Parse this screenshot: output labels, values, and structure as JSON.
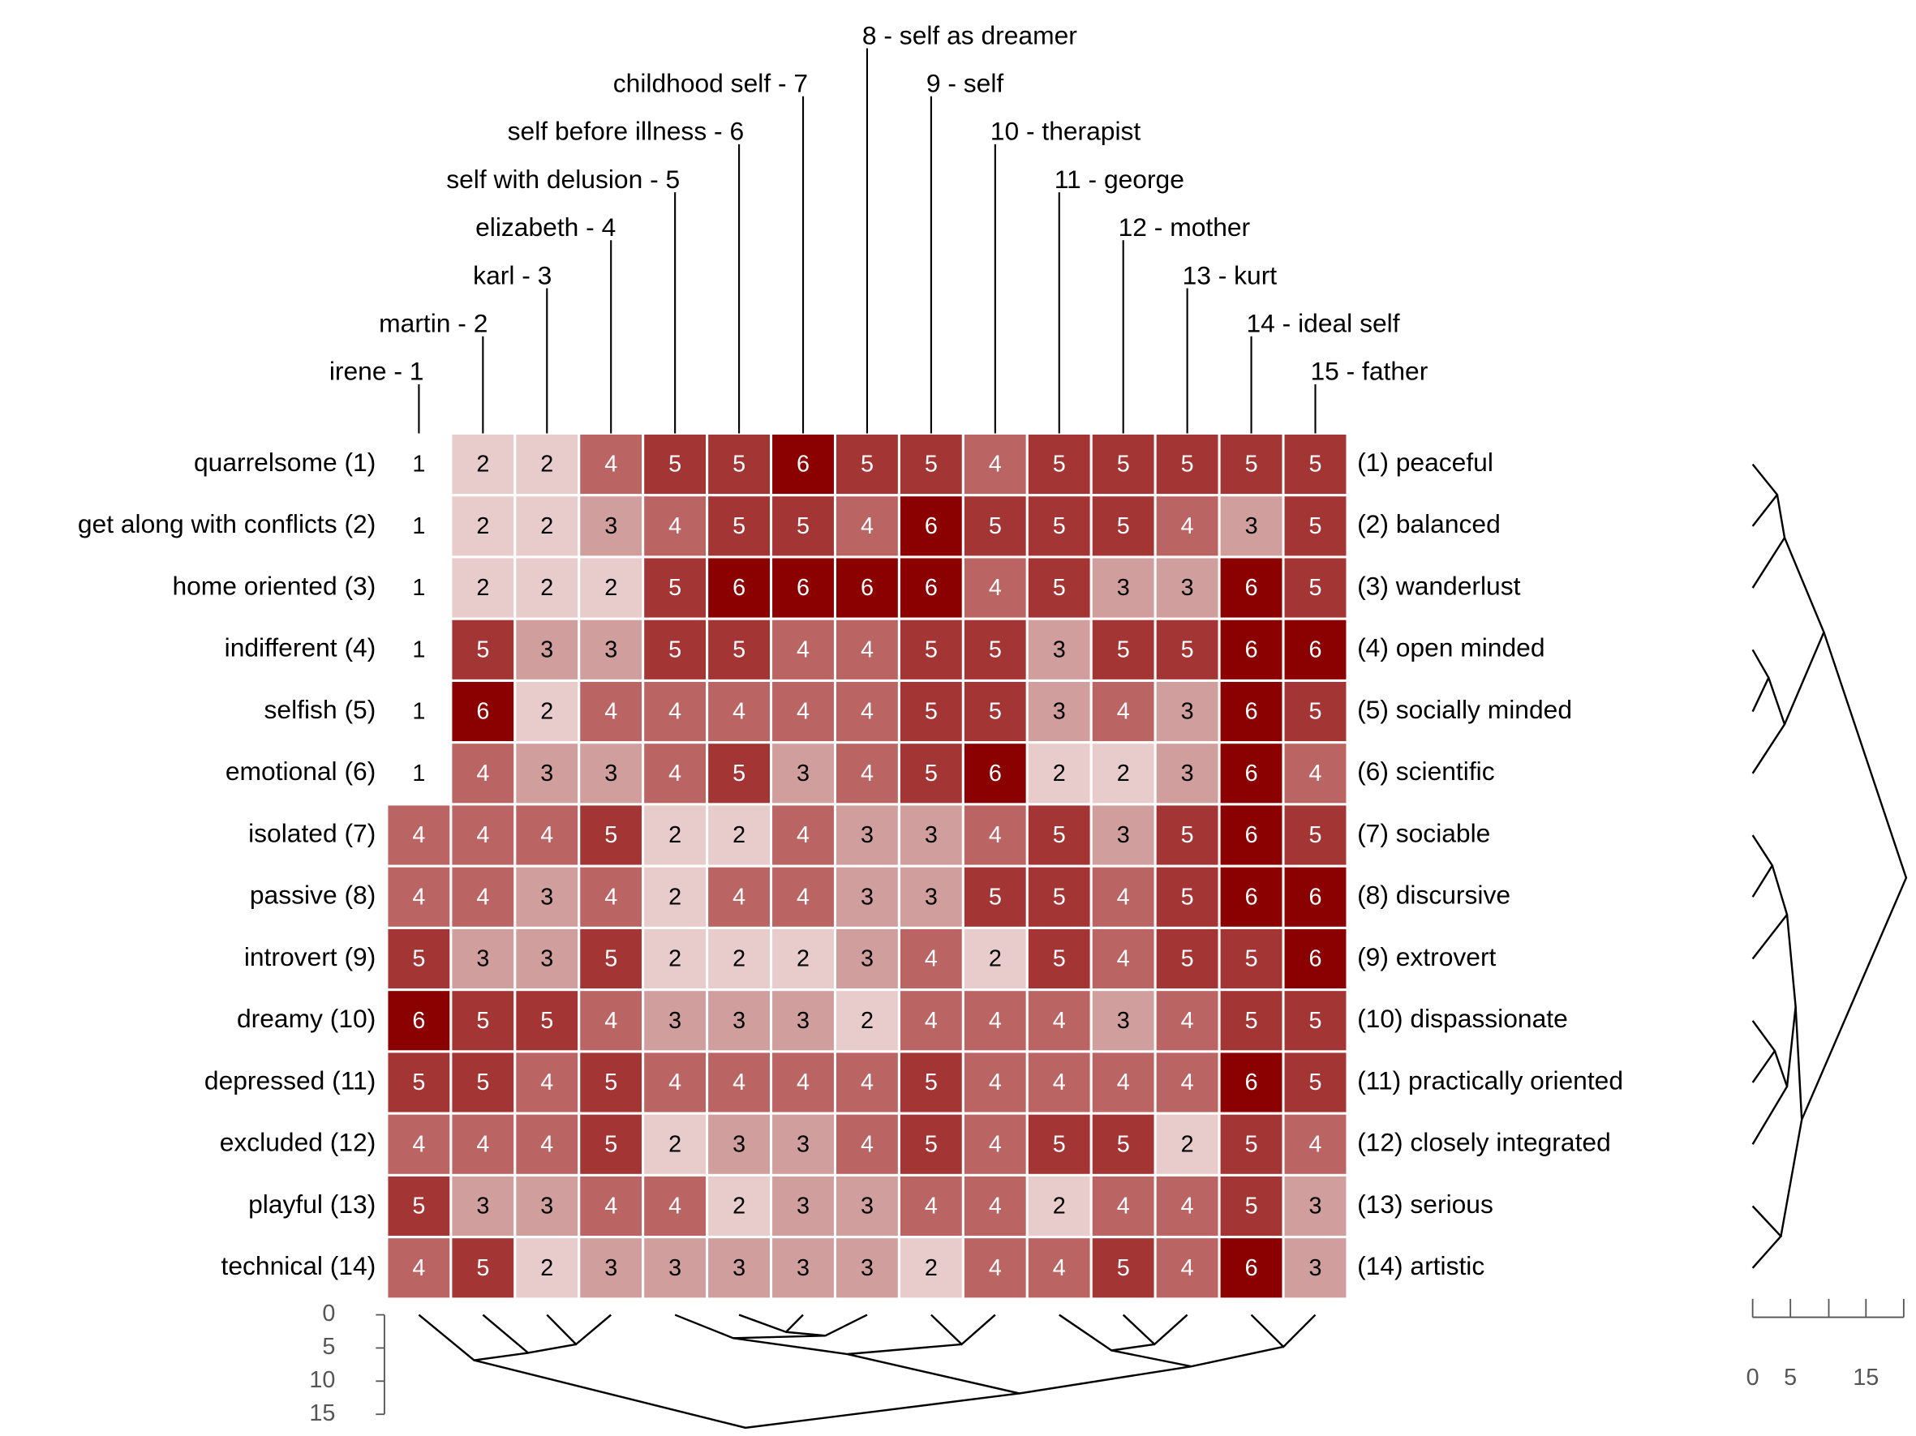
{
  "chart_data": {
    "type": "heatmap",
    "elements": [
      "irene - 1",
      "martin - 2",
      "karl - 3",
      "elizabeth - 4",
      "self with delusion - 5",
      "self before illness - 6",
      "childhood self - 7",
      "8 - self as dreamer",
      "9 - self",
      "10 - therapist",
      "11 - george",
      "12 - mother",
      "13 - kurt",
      "14 - ideal self",
      "15 - father"
    ],
    "left_poles": [
      "quarrelsome (1)",
      "get along with conflicts (2)",
      "home oriented (3)",
      "indifferent (4)",
      "selfish (5)",
      "emotional (6)",
      "isolated (7)",
      "passive (8)",
      "introvert (9)",
      "dreamy (10)",
      "depressed (11)",
      "excluded (12)",
      "playful (13)",
      "technical (14)"
    ],
    "right_poles": [
      "(1) peaceful",
      "(2) balanced",
      "(3) wanderlust",
      "(4) open minded",
      "(5) socially minded",
      "(6) scientific",
      "(7) sociable",
      "(8) discursive",
      "(9) extrovert",
      "(10) dispassionate",
      "(11) practically oriented",
      "(12) closely integrated",
      "(13) serious",
      "(14) artistic"
    ],
    "values": [
      [
        1,
        2,
        2,
        4,
        5,
        5,
        6,
        5,
        5,
        4,
        5,
        5,
        5,
        5,
        5
      ],
      [
        1,
        2,
        2,
        3,
        4,
        5,
        5,
        4,
        6,
        5,
        5,
        5,
        4,
        3,
        5
      ],
      [
        1,
        2,
        2,
        2,
        5,
        6,
        6,
        6,
        6,
        4,
        5,
        3,
        3,
        6,
        5
      ],
      [
        1,
        5,
        3,
        3,
        5,
        5,
        4,
        4,
        5,
        5,
        3,
        5,
        5,
        6,
        6
      ],
      [
        1,
        6,
        2,
        4,
        4,
        4,
        4,
        4,
        5,
        5,
        3,
        4,
        3,
        6,
        5
      ],
      [
        1,
        4,
        3,
        3,
        4,
        5,
        3,
        4,
        5,
        6,
        2,
        2,
        3,
        6,
        4
      ],
      [
        4,
        4,
        4,
        5,
        2,
        2,
        4,
        3,
        3,
        4,
        5,
        3,
        5,
        6,
        5
      ],
      [
        4,
        4,
        3,
        4,
        2,
        4,
        4,
        3,
        3,
        5,
        5,
        4,
        5,
        6,
        6
      ],
      [
        5,
        3,
        3,
        5,
        2,
        2,
        2,
        3,
        4,
        2,
        5,
        4,
        5,
        5,
        6
      ],
      [
        6,
        5,
        5,
        4,
        3,
        3,
        3,
        2,
        4,
        4,
        4,
        3,
        4,
        5,
        5
      ],
      [
        5,
        5,
        4,
        5,
        4,
        4,
        4,
        4,
        5,
        4,
        4,
        4,
        4,
        6,
        5
      ],
      [
        4,
        4,
        4,
        5,
        2,
        3,
        3,
        4,
        5,
        4,
        5,
        5,
        2,
        5,
        4
      ],
      [
        5,
        3,
        3,
        4,
        4,
        2,
        3,
        3,
        4,
        4,
        2,
        4,
        4,
        5,
        3
      ],
      [
        4,
        5,
        2,
        3,
        3,
        3,
        3,
        3,
        2,
        4,
        4,
        5,
        4,
        6,
        3
      ]
    ],
    "colors": [
      "#ffffff",
      "#e8cccc",
      "#d19e9e",
      "#ba6464",
      "#a33535",
      "#8b0000"
    ],
    "column_dendrogram_ticks": [
      0,
      5,
      10,
      15
    ],
    "row_dendrogram_ticks": [
      0,
      5,
      15
    ]
  }
}
